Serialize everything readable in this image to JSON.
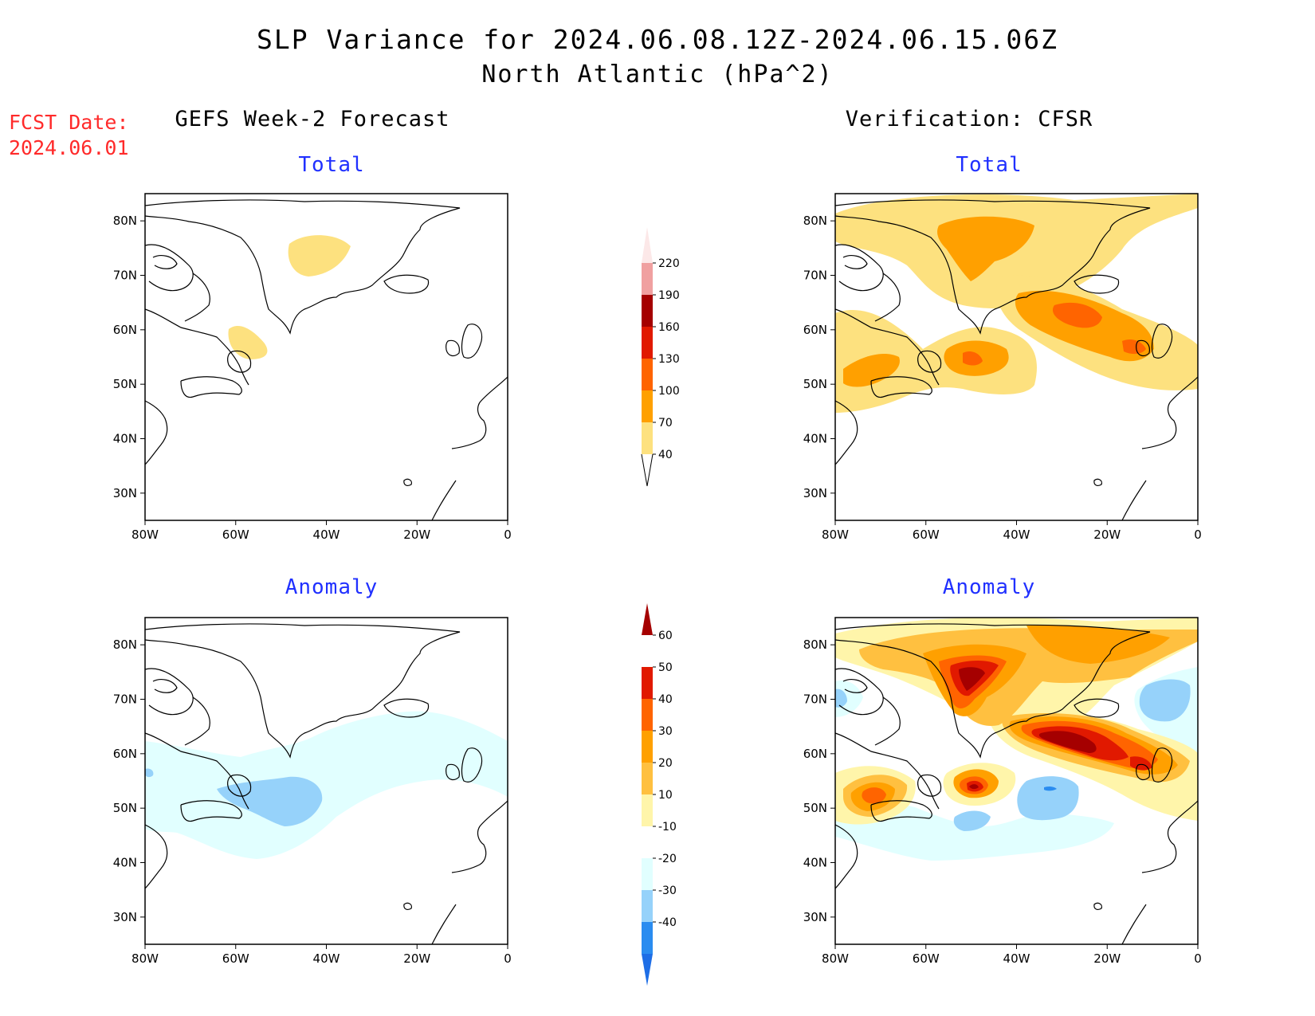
{
  "title": {
    "line1": "SLP Variance for 2024.06.08.12Z-2024.06.15.06Z",
    "line2": "North Atlantic (hPa^2)"
  },
  "forecast_date": {
    "label": "FCST Date:",
    "value": "2024.06.01"
  },
  "columns": {
    "left": "GEFS Week-2 Forecast",
    "right": "Verification: CFSR"
  },
  "panels": {
    "top_left": "Total",
    "top_right": "Total",
    "bottom_left": "Anomaly",
    "bottom_right": "Anomaly"
  },
  "axes": {
    "lat_labels": [
      "80N",
      "70N",
      "60N",
      "50N",
      "40N",
      "30N"
    ],
    "lon_labels": [
      "80W",
      "60W",
      "40W",
      "20W",
      "0"
    ]
  },
  "total_colorbar": {
    "levels": [
      "40",
      "70",
      "100",
      "130",
      "160",
      "190",
      "220"
    ],
    "colors": [
      "#fde17f",
      "#ffa000",
      "#ff6400",
      "#e11900",
      "#a50000",
      "#f0a0a0",
      "#fce8e8"
    ]
  },
  "anomaly_colorbar": {
    "levels": [
      "-40",
      "-30",
      "-20",
      "-10",
      "10",
      "20",
      "30",
      "40",
      "50",
      "60"
    ],
    "colors": [
      "#1e6ee6",
      "#2a8cf0",
      "#96d2fa",
      "#e1ffff",
      "#ffffff",
      "#fff5aa",
      "#ffc040",
      "#ffa000",
      "#ff6400",
      "#e11900",
      "#a50000"
    ]
  },
  "colors": {
    "title_text": "#000000",
    "panel_title": "#2030ff",
    "fcst_text": "#ff2a2a",
    "coast": "#000000"
  }
}
